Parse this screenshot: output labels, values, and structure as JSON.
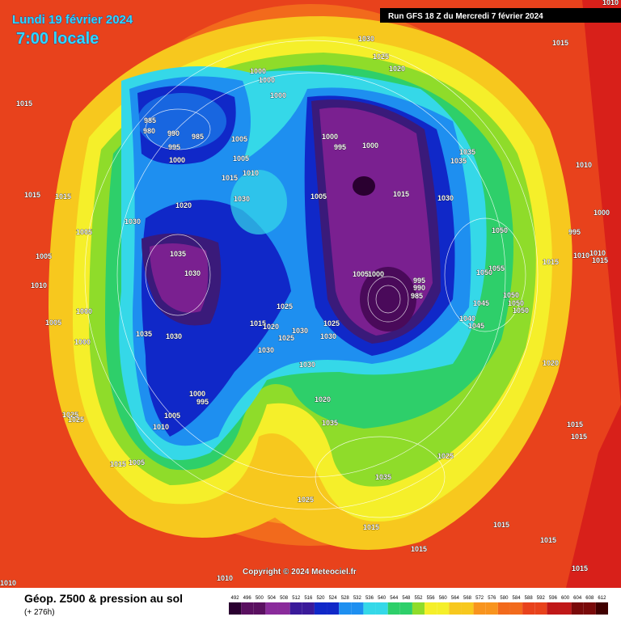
{
  "header": {
    "date": "Lundi 19 février 2024",
    "time": "7:00 locale",
    "run": "Run GFS 18 Z du Mercredi 7 février 2024"
  },
  "map": {
    "copyright": "Copyright © 2024 Meteociel.fr",
    "isobar_labels": [
      "1015",
      "1015",
      "1015",
      "1005",
      "1005",
      "1010",
      "1005",
      "1000",
      "1000",
      "1030",
      "1035",
      "1030",
      "1035",
      "1030",
      "1020",
      "1030",
      "1015",
      "1010",
      "1005",
      "1005",
      "985",
      "980",
      "990",
      "985",
      "995",
      "1000",
      "1000",
      "1000",
      "1000",
      "1030",
      "1025",
      "1020",
      "1015",
      "1000",
      "995",
      "1000",
      "1015",
      "1030",
      "1035",
      "1035",
      "1005",
      "1050",
      "1055",
      "1050",
      "1045",
      "1050",
      "1050",
      "1050",
      "1040",
      "1045",
      "1015",
      "995",
      "1000",
      "1010",
      "1010",
      "1010",
      "1015",
      "1020",
      "1005",
      "1000",
      "995",
      "990",
      "985",
      "1025",
      "1015",
      "1020",
      "1025",
      "1030",
      "1025",
      "1030",
      "1030",
      "1030",
      "1000",
      "995",
      "1005",
      "1010",
      "1015",
      "1005",
      "1025",
      "1025",
      "1020",
      "1035",
      "1035",
      "1025",
      "1025",
      "1015",
      "1015",
      "1015",
      "1015",
      "1015",
      "1015",
      "1015",
      "1010",
      "1010",
      "1010"
    ]
  },
  "legend": {
    "title": "Géop. Z500 & pression au sol",
    "lead_time": "(+ 276h)",
    "scale": [
      492,
      496,
      500,
      504,
      508,
      512,
      516,
      520,
      524,
      528,
      532,
      536,
      540,
      544,
      548,
      552,
      556,
      560,
      564,
      568,
      572,
      576,
      580,
      584,
      588,
      592,
      596,
      600,
      604,
      608,
      612
    ]
  }
}
